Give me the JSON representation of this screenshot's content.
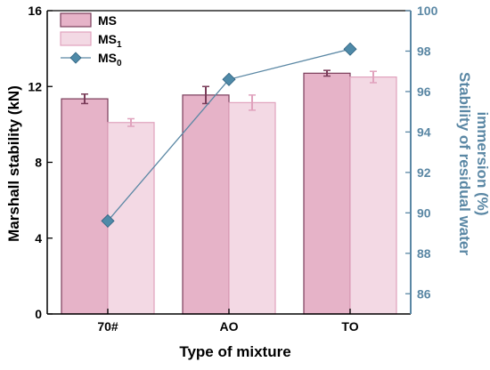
{
  "chart_data": {
    "type": "bar",
    "categories": [
      "70#",
      "AO",
      "TO"
    ],
    "xlabel": "Type of mixture",
    "ylabel_left": "Marshall stability (kN)",
    "ylabel_right_line1": "Stability of residual water",
    "ylabel_right_line2": "immersion (%)",
    "left_axis": {
      "min": 0,
      "max": 16,
      "ticks": [
        0,
        4,
        8,
        12,
        16
      ]
    },
    "right_axis": {
      "min": 85,
      "max": 100,
      "ticks": [
        86,
        88,
        90,
        92,
        94,
        96,
        98,
        100
      ]
    },
    "series": [
      {
        "name": "MS",
        "type": "bar",
        "axis": "left",
        "values": [
          11.35,
          11.55,
          12.7
        ],
        "errors": [
          0.25,
          0.45,
          0.15
        ],
        "color": "#e6b3c8",
        "edge": "#7a3d5a"
      },
      {
        "name": "MS1",
        "type": "bar",
        "axis": "left",
        "values": [
          10.1,
          11.15,
          12.5
        ],
        "errors": [
          0.2,
          0.4,
          0.3
        ],
        "color": "#f3d9e4",
        "edge": "#e0a2bd"
      },
      {
        "name": "MS0",
        "type": "line",
        "axis": "right",
        "values": [
          89.6,
          96.6,
          98.1
        ],
        "color": "#5a87a4",
        "marker_color": "#4f8aa8"
      }
    ],
    "legend": [
      {
        "label": "MS",
        "sub": ""
      },
      {
        "label": "MS",
        "sub": "1"
      },
      {
        "label": "MS",
        "sub": "0"
      }
    ],
    "legend_position": "top-left",
    "grid": false,
    "colors": {
      "left_axis": "#000000",
      "right_axis": "#5a87a4"
    }
  }
}
